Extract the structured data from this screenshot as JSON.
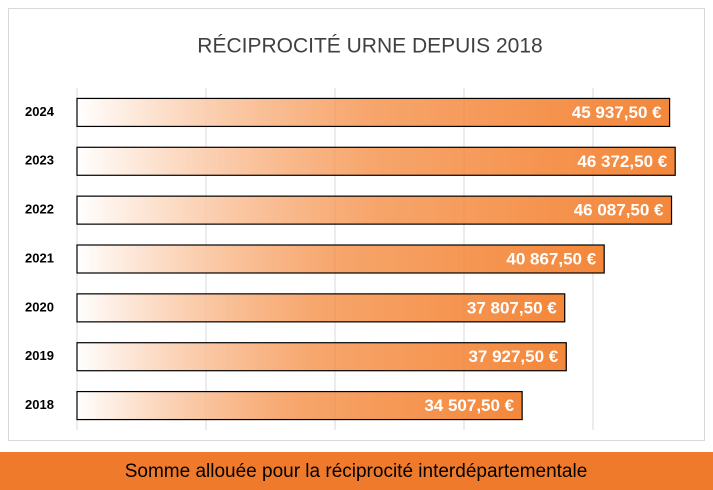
{
  "chart_data": {
    "type": "bar",
    "orientation": "horizontal",
    "title": "RÉCIPROCITÉ URNE DEPUIS 2018",
    "categories": [
      "2024",
      "2023",
      "2022",
      "2021",
      "2020",
      "2019",
      "2018"
    ],
    "values": [
      45937.5,
      46372.5,
      46087.5,
      40867.5,
      37807.5,
      37927.5,
      34507.5
    ],
    "value_labels": [
      "45 937,50 €",
      "46 372,50 €",
      "46 087,50 €",
      "40 867,50 €",
      "37 807,50 €",
      "37 927,50 €",
      "34 507,50 €"
    ],
    "color": "#f4873a",
    "xlim": [
      0,
      50000
    ],
    "xticks": [
      0,
      10000,
      20000,
      30000,
      40000
    ],
    "grid": true
  },
  "footer": "Somme allouée pour la réciprocité interdépartementale"
}
